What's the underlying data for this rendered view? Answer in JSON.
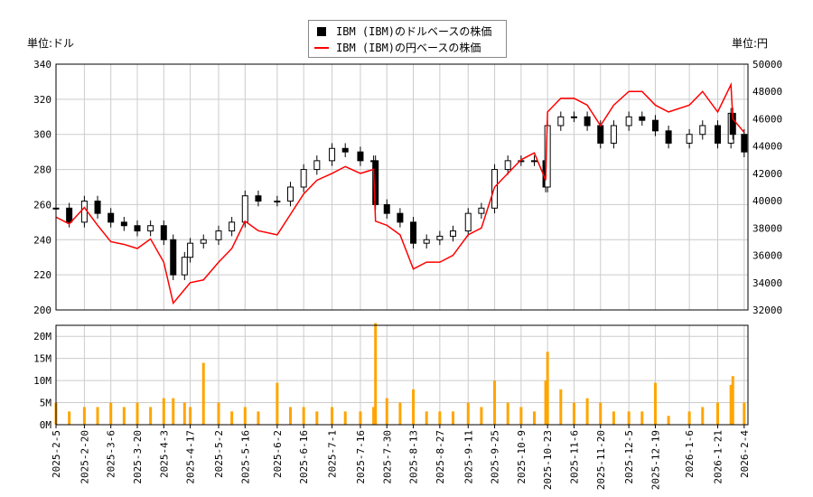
{
  "chart_data": [
    {
      "type": "candlestick+line",
      "left_unit": "単位:ドル",
      "right_unit": "単位:円",
      "legend": [
        {
          "name": "IBM (IBM)のドルベースの株価",
          "color": "#000000",
          "marker": "square"
        },
        {
          "name": "IBM (IBM)の円ベースの株価",
          "color": "#ff0000",
          "marker": "line"
        }
      ],
      "ylim_left": [
        200,
        340
      ],
      "yticks_left": [
        "200",
        "220",
        "240",
        "260",
        "280",
        "300",
        "320",
        "340"
      ],
      "ylim_right": [
        32000,
        50000
      ],
      "yticks_right": [
        "32000",
        "34000",
        "36000",
        "38000",
        "40000",
        "42000",
        "44000",
        "46000",
        "48000",
        "50000"
      ],
      "xlim": [
        "2025-02-05",
        "2026-02-06"
      ],
      "xticks": [
        "2025-2-5",
        "2025-2-20",
        "2025-3-6",
        "2025-3-20",
        "2025-4-3",
        "2025-4-17",
        "2025-5-2",
        "2025-5-16",
        "2025-6-2",
        "2025-6-16",
        "2025-7-1",
        "2025-7-16",
        "2025-7-30",
        "2025-8-13",
        "2025-8-27",
        "2025-9-11",
        "2025-9-25",
        "2025-10-9",
        "2025-10-23",
        "2025-11-6",
        "2025-11-20",
        "2025-12-5",
        "2025-12-19",
        "2026-1-6",
        "2026-1-21",
        "2026-2-4"
      ],
      "grid": true,
      "legend_position": "top-center",
      "dates": [
        "2025-02-05",
        "2025-02-12",
        "2025-02-20",
        "2025-02-27",
        "2025-03-06",
        "2025-03-13",
        "2025-03-20",
        "2025-03-27",
        "2025-04-03",
        "2025-04-08",
        "2025-04-14",
        "2025-04-17",
        "2025-04-24",
        "2025-05-02",
        "2025-05-09",
        "2025-05-16",
        "2025-05-23",
        "2025-06-02",
        "2025-06-09",
        "2025-06-16",
        "2025-06-23",
        "2025-07-01",
        "2025-07-08",
        "2025-07-16",
        "2025-07-23",
        "2025-07-24",
        "2025-07-30",
        "2025-08-06",
        "2025-08-13",
        "2025-08-20",
        "2025-08-27",
        "2025-09-03",
        "2025-09-11",
        "2025-09-18",
        "2025-09-25",
        "2025-10-02",
        "2025-10-09",
        "2025-10-16",
        "2025-10-22",
        "2025-10-23",
        "2025-10-30",
        "2025-11-06",
        "2025-11-13",
        "2025-11-20",
        "2025-11-27",
        "2025-12-05",
        "2025-12-12",
        "2025-12-19",
        "2025-12-26",
        "2026-01-06",
        "2026-01-13",
        "2026-01-21",
        "2026-01-28",
        "2026-01-29",
        "2026-02-04"
      ],
      "usd_close": [
        258,
        250,
        262,
        255,
        250,
        248,
        245,
        248,
        240,
        220,
        230,
        238,
        240,
        245,
        250,
        265,
        262,
        262,
        270,
        280,
        285,
        292,
        290,
        285,
        285,
        260,
        255,
        250,
        238,
        240,
        242,
        245,
        255,
        258,
        280,
        285,
        285,
        285,
        270,
        305,
        310,
        310,
        305,
        295,
        305,
        310,
        308,
        302,
        295,
        300,
        305,
        295,
        312,
        300,
        290
      ],
      "jpy_close": [
        38800,
        38300,
        39500,
        38200,
        37000,
        36800,
        36500,
        37200,
        35500,
        32500,
        33500,
        34000,
        34200,
        35500,
        36500,
        38500,
        37800,
        37500,
        39000,
        40500,
        41500,
        42000,
        42500,
        42000,
        42300,
        38500,
        38200,
        37500,
        35000,
        35500,
        35500,
        36000,
        37500,
        38000,
        41000,
        42000,
        43000,
        43500,
        41500,
        46500,
        47500,
        47500,
        47000,
        45500,
        47000,
        48000,
        48000,
        47000,
        46500,
        47000,
        48000,
        46500,
        48500,
        46000,
        45000
      ]
    },
    {
      "type": "bar",
      "ylim": [
        0,
        22.5
      ],
      "yticks": [
        "0M",
        "5M",
        "10M",
        "15M",
        "20M"
      ],
      "color": "#ffa500",
      "volume_millions": [
        5,
        3,
        4,
        4,
        5,
        4,
        5,
        4,
        6,
        6,
        5,
        4,
        14,
        5,
        3,
        4,
        3,
        9.5,
        4,
        4,
        3,
        4,
        3,
        3,
        4,
        23,
        6,
        5,
        8,
        3,
        3,
        3,
        5,
        4,
        10,
        5,
        4,
        3,
        10,
        16.5,
        8,
        5,
        6,
        5,
        3,
        3,
        3,
        9.5,
        2,
        3,
        4,
        5,
        9,
        11,
        5
      ]
    }
  ]
}
